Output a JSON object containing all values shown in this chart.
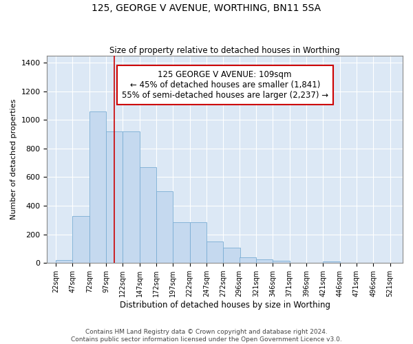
{
  "title": "125, GEORGE V AVENUE, WORTHING, BN11 5SA",
  "subtitle": "Size of property relative to detached houses in Worthing",
  "xlabel": "Distribution of detached houses by size in Worthing",
  "ylabel": "Number of detached properties",
  "bar_color": "#c5d9ef",
  "bar_edge_color": "#7aadd4",
  "background_color": "#dce8f5",
  "vline_color": "#cc0000",
  "vline_x": 109,
  "annotation_text": "125 GEORGE V AVENUE: 109sqm\n← 45% of detached houses are smaller (1,841)\n55% of semi-detached houses are larger (2,237) →",
  "bins_start": [
    22,
    47,
    72,
    97,
    122,
    147,
    172,
    197,
    222,
    247,
    272,
    296,
    321,
    346,
    371,
    396,
    421,
    446,
    471,
    496
  ],
  "bin_width": 25,
  "values": [
    20,
    330,
    1060,
    920,
    920,
    670,
    500,
    285,
    285,
    150,
    105,
    40,
    25,
    15,
    0,
    0,
    10,
    0,
    0,
    0
  ],
  "tick_positions": [
    22,
    47,
    72,
    97,
    122,
    147,
    172,
    197,
    222,
    247,
    272,
    296,
    321,
    346,
    371,
    396,
    421,
    446,
    471,
    496,
    521
  ],
  "tick_labels": [
    "22sqm",
    "47sqm",
    "72sqm",
    "97sqm",
    "122sqm",
    "147sqm",
    "172sqm",
    "197sqm",
    "222sqm",
    "247sqm",
    "272sqm",
    "296sqm",
    "321sqm",
    "346sqm",
    "371sqm",
    "396sqm",
    "421sqm",
    "446sqm",
    "471sqm",
    "496sqm",
    "521sqm"
  ],
  "ylim": [
    0,
    1450
  ],
  "yticks": [
    0,
    200,
    400,
    600,
    800,
    1000,
    1200,
    1400
  ],
  "xlim": [
    9,
    540
  ],
  "footer": "Contains HM Land Registry data © Crown copyright and database right 2024.\nContains public sector information licensed under the Open Government Licence v3.0.",
  "figsize": [
    6.0,
    5.0
  ],
  "dpi": 100
}
